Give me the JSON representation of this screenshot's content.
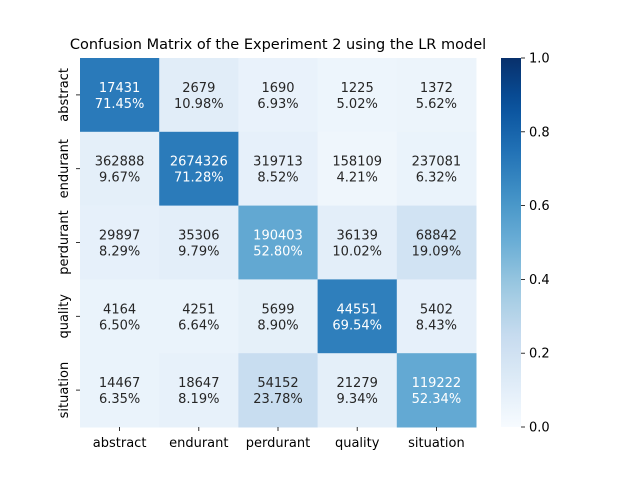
{
  "chart_data": {
    "type": "heatmap",
    "title": "Confusion Matrix of the Experiment 2 using the LR model",
    "xlabel": "",
    "ylabel": "",
    "x_categories": [
      "abstract",
      "endurant",
      "perdurant",
      "quality",
      "situation"
    ],
    "y_categories": [
      "abstract",
      "endurant",
      "perdurant",
      "quality",
      "situation"
    ],
    "counts": [
      [
        17431,
        2679,
        1690,
        1225,
        1372
      ],
      [
        362888,
        2674326,
        319713,
        158109,
        237081
      ],
      [
        29897,
        35306,
        190403,
        36139,
        68842
      ],
      [
        4164,
        4251,
        5699,
        44551,
        5402
      ],
      [
        14467,
        18647,
        54152,
        21279,
        119222
      ]
    ],
    "percent_labels": [
      [
        "71.45%",
        "10.98%",
        "6.93%",
        "5.02%",
        "5.62%"
      ],
      [
        "9.67%",
        "71.28%",
        "8.52%",
        "4.21%",
        "6.32%"
      ],
      [
        "8.29%",
        "9.79%",
        "52.80%",
        "10.02%",
        "19.09%"
      ],
      [
        "6.50%",
        "6.64%",
        "8.90%",
        "69.54%",
        "8.43%"
      ],
      [
        "6.35%",
        "8.19%",
        "23.78%",
        "9.34%",
        "52.34%"
      ]
    ],
    "values": [
      [
        0.7145,
        0.1098,
        0.0693,
        0.0502,
        0.0562
      ],
      [
        0.0967,
        0.7128,
        0.0852,
        0.0421,
        0.0632
      ],
      [
        0.0829,
        0.0979,
        0.528,
        0.1002,
        0.1909
      ],
      [
        0.065,
        0.0664,
        0.089,
        0.6954,
        0.0843
      ],
      [
        0.0635,
        0.0819,
        0.2378,
        0.0934,
        0.5234
      ]
    ],
    "colorbar": {
      "range": [
        0.0,
        1.0
      ],
      "ticks": [
        "0.0",
        "0.2",
        "0.4",
        "0.6",
        "0.8",
        "1.0"
      ],
      "colormap": "Blues"
    },
    "grid": false
  }
}
